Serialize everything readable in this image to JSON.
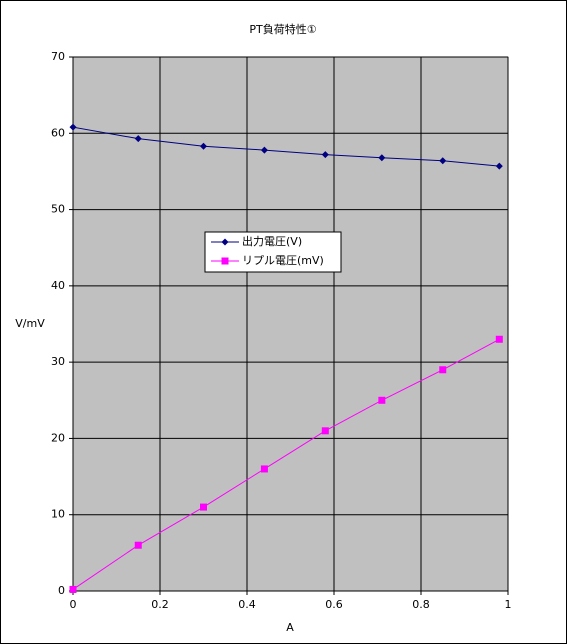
{
  "chart_data": {
    "type": "line",
    "title": "PT負荷特性①",
    "x_label": "A",
    "y_label": "V/mV",
    "x": [
      0,
      0.15,
      0.3,
      0.44,
      0.58,
      0.71,
      0.85,
      0.98
    ],
    "series": [
      {
        "name": "出力電圧(V)",
        "color": "#000080",
        "marker": "diamond",
        "values": [
          60.8,
          59.3,
          58.3,
          57.8,
          57.2,
          56.8,
          56.4,
          55.7
        ]
      },
      {
        "name": "リプル電圧(mV)",
        "color": "#ff00ff",
        "marker": "square",
        "values": [
          0.2,
          6,
          11,
          16,
          21,
          25,
          29,
          33
        ]
      }
    ],
    "xlim": [
      0,
      1
    ],
    "xticks": [
      0,
      0.2,
      0.4,
      0.6,
      0.8,
      1
    ],
    "ylim": [
      0,
      70
    ],
    "yticks": [
      0,
      10,
      20,
      30,
      40,
      50,
      60,
      70
    ],
    "grid": true,
    "plot_background": "#c0c0c0"
  }
}
